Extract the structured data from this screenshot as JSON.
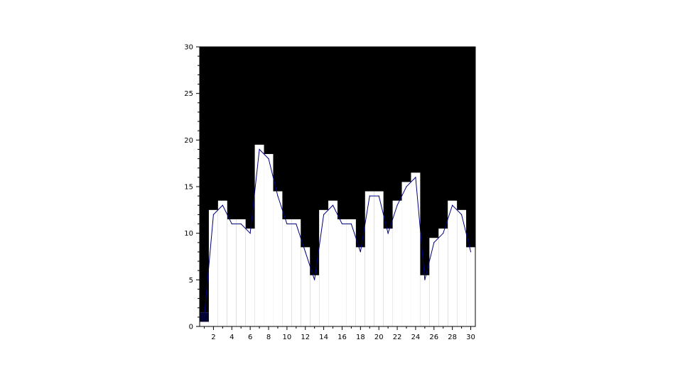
{
  "chart_data": {
    "type": "area",
    "title": "",
    "xlabel": "",
    "ylabel": "",
    "xlim": [
      0.5,
      30.5
    ],
    "ylim": [
      0,
      30
    ],
    "x_ticks": [
      2,
      4,
      6,
      8,
      10,
      12,
      14,
      16,
      18,
      20,
      22,
      24,
      26,
      28,
      30
    ],
    "y_ticks": [
      0,
      5,
      10,
      15,
      20,
      25,
      30
    ],
    "grid": false,
    "legend": "none",
    "x": [
      1,
      2,
      3,
      4,
      5,
      6,
      7,
      8,
      9,
      10,
      11,
      12,
      13,
      14,
      15,
      16,
      17,
      18,
      19,
      20,
      21,
      22,
      23,
      24,
      25,
      26,
      27,
      28,
      29,
      30
    ],
    "series": [
      {
        "values": [
          1,
          12,
          13,
          11,
          11,
          10,
          19,
          18,
          14,
          11,
          11,
          8,
          5,
          12,
          13,
          11,
          11,
          8,
          14,
          14,
          10,
          13,
          15,
          16,
          5,
          9,
          10,
          13,
          12,
          8
        ],
        "style": "line",
        "color": "#000080"
      },
      {
        "values": [
          1,
          12,
          13,
          11,
          11,
          10,
          19,
          18,
          14,
          11,
          11,
          8,
          5,
          12,
          13,
          11,
          11,
          8,
          14,
          14,
          10,
          13,
          15,
          16,
          5,
          9,
          10,
          13,
          12,
          8
        ],
        "style": "grayplot",
        "fill_below": "#ffffff",
        "fill_above": "#000000"
      }
    ],
    "special_cells": [
      {
        "x": 1,
        "y_range": [
          0.5,
          1.5
        ],
        "color": "#000033"
      }
    ],
    "colors": {
      "background": "#ffffff",
      "plot_top": "#000000",
      "plot_bottom": "#ffffff",
      "line": "#000080",
      "axis": "#000000"
    }
  }
}
